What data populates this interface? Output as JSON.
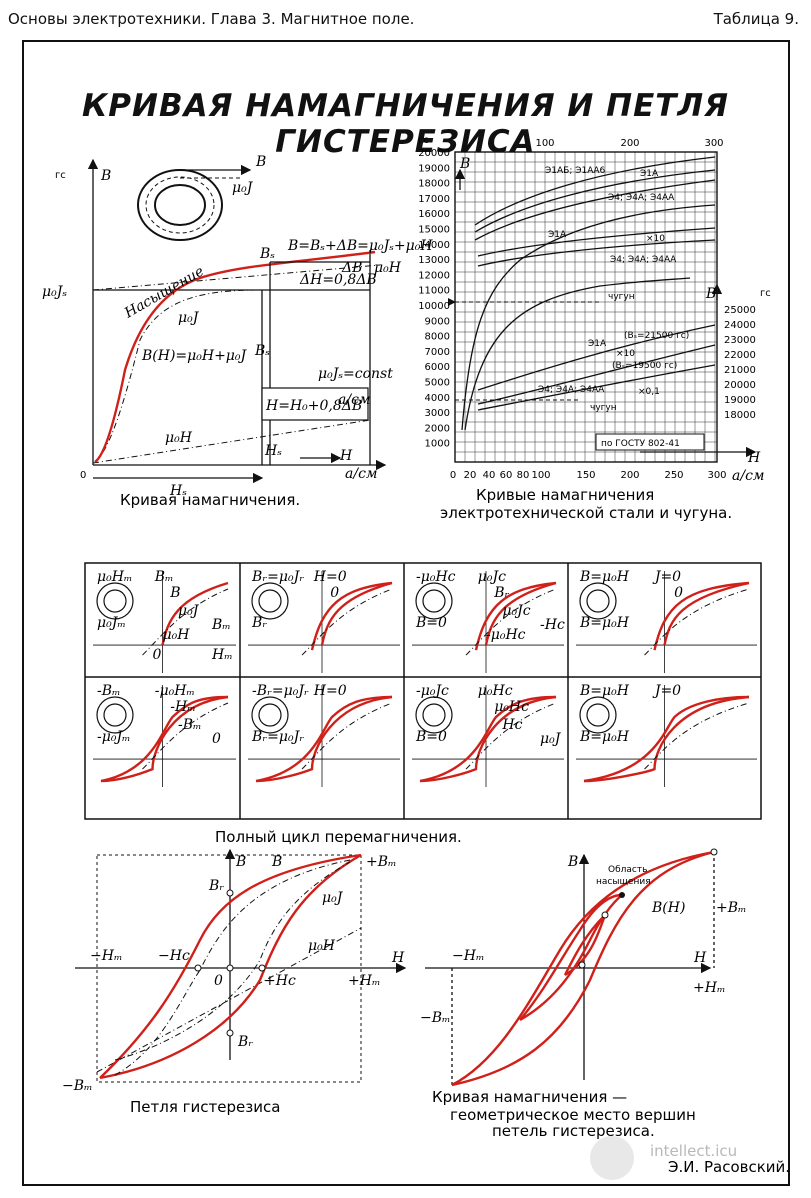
{
  "header": {
    "left": "Основы электротехники. Глава 3. Магнитное поле.",
    "right": "Таблица 9."
  },
  "title": "КРИВАЯ НАМАГНИЧЕНИЯ И ПЕТЛЯ ГИСТЕРЕЗИСА",
  "magnetization": {
    "caption": "Кривая намагничения.",
    "unit_gs": "гс",
    "axis_b": "B",
    "axis_h": "H",
    "unit_h": "a/см",
    "origin": "0",
    "mu0js": "μ₀Jₛ",
    "mu0j": "μ₀J",
    "mu0h": "μ₀H",
    "saturation": "Насыщение",
    "bh_formula": "B(H)=μ₀H+μ₀J",
    "bs": "Bₛ",
    "hs": "Hₛ",
    "bs_formula": "B=Bₛ+ΔB=μ₀Jₛ+μ₀H",
    "delta_b": "ΔB",
    "delta_h": "ΔH=0,8ΔB",
    "const": "μ₀Jₛ=const",
    "h_formula": "H=H₀+0,8ΔB",
    "h_unit_frac": "a/см",
    "coil_b": "B",
    "coil_j": "μ₀J"
  },
  "steel": {
    "caption_1": "Кривые намагничения",
    "caption_2": "электротехнической стали и чугуна.",
    "unit_left": "гс",
    "unit_right": "гс",
    "axis_b": "B",
    "axis_h": "H",
    "unit_h": "a/см",
    "left_ticks": [
      "20000",
      "19000",
      "18000",
      "17000",
      "16000",
      "15000",
      "14000",
      "13000",
      "12000",
      "11000",
      "10000",
      "9000",
      "8000",
      "7000",
      "6000",
      "5000",
      "4000",
      "3000",
      "2000",
      "1000"
    ],
    "right_ticks": [
      "25000",
      "24000",
      "23000",
      "22000",
      "21000",
      "20000",
      "19000",
      "18000"
    ],
    "top_ticks": [
      "100",
      "200",
      "300"
    ],
    "bottom_ticks": [
      "0",
      "20",
      "40",
      "60",
      "80",
      "100",
      "150",
      "200",
      "250",
      "300"
    ],
    "labels": {
      "e31ab": "Э1АБ; Э1АА6",
      "e31a_top": "Э1А",
      "e34_top": "Э4; Э4А; Э4АА",
      "e31a_mid": "Э1А",
      "x10_mid": "×10",
      "e34_mid": "Э4; Э4А; Э4АА",
      "chugun": "чугун",
      "e31a_low": "Э1А",
      "bs1": "(Bₛ=21500 гс)",
      "x10_low": "×10",
      "bs2": "(Bₛ=19500 гс)",
      "e34_low": "Э4; Э4А; Э4АА",
      "x01": "×0,1",
      "chugun_low": "чугун",
      "gost": "по ГОСТУ 802-41"
    }
  },
  "cycle": {
    "caption": "Полный цикл перемагничения.",
    "panels": [
      {
        "a": "μ₀Hₘ",
        "b": "Bₘ",
        "c": "μ₀Jₘ",
        "d": "B",
        "e": "μ₀J",
        "f": "Bₘ",
        "g": "μ₀H",
        "h": "Hₘ",
        "o": "0"
      },
      {
        "a": "Bᵣ=μ₀Jᵣ",
        "b": "H=0",
        "c": "Bᵣ",
        "o": "0"
      },
      {
        "a": "-μ₀Hc",
        "b": "μ₀Jc",
        "c": "B=0",
        "d": "Bᵣ",
        "e": "μ₀Jc",
        "f": "-Hc",
        "g": "-μ₀Hc"
      },
      {
        "a": "B=μ₀H",
        "b": "J=0",
        "c": "B=μ₀H",
        "o": "0"
      },
      {
        "a": "-Bₘ",
        "b": "-μ₀Hₘ",
        "c": "-μ₀Jₘ",
        "d": "-Hₘ",
        "e": "-Bₘ",
        "o": "0"
      },
      {
        "a": "-Bᵣ=μ₀Jᵣ",
        "b": "H=0",
        "c": "Bᵣ=μ₀Jᵣ"
      },
      {
        "a": "-μ₀Jc",
        "b": "μ₀Hc",
        "c": "B=0",
        "d": "μ₀Hc",
        "e": "Hc",
        "f": "μ₀J"
      },
      {
        "a": "B=μ₀H",
        "b": "J=0",
        "c": "B=μ₀H"
      }
    ]
  },
  "hysteresis": {
    "caption": "Петля гистерезиса",
    "axis_b": "B",
    "axis_h": "H",
    "bm": "+Bₘ",
    "b": "B",
    "br": "Bᵣ",
    "mu0j": "μ₀J",
    "mu0h": "μ₀H",
    "minus_hm": "−Hₘ",
    "minus_hc": "−Hc",
    "zero": "0",
    "plus_hc": "+Hc",
    "plus_hm": "+Hₘ",
    "minus_br": "Bᵣ",
    "minus_bm": "−Bₘ"
  },
  "envelope": {
    "caption_1": "Кривая намагничения —",
    "caption_2": "геометрическое место вершин",
    "caption_3": "петель гистерезиса.",
    "axis_b": "B",
    "axis_h": "H",
    "region_1": "Область",
    "region_2": "насыщения",
    "bh": "B(H)",
    "plus_bm": "+Bₘ",
    "minus_hm": "−Hₘ",
    "plus_hm": "+Hₘ",
    "minus_bm": "−Bₘ"
  },
  "author": "Э.И. Расовский.",
  "watermark": "intellect.icu",
  "colors": {
    "accent_red": "#d0201a",
    "ink": "#111111"
  }
}
